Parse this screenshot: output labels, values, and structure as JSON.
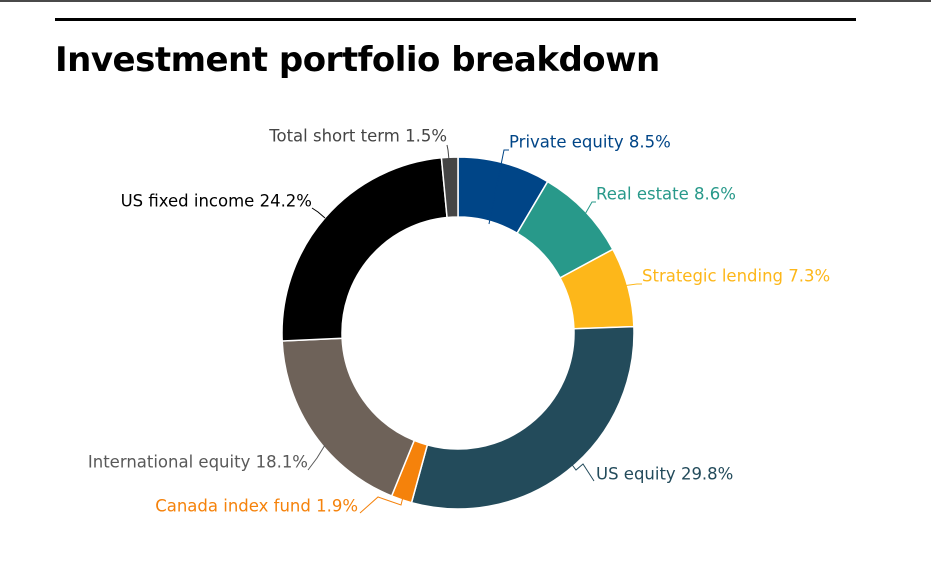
{
  "chart_data": {
    "type": "pie",
    "title": "Investment portfolio breakdown",
    "donut": true,
    "start_angle_deg": 0,
    "direction": "clockwise",
    "slices": [
      {
        "label": "Private equity 8.5%",
        "value": 8.5,
        "color": "#004587"
      },
      {
        "label": "Real estate 8.6%",
        "value": 8.6,
        "color": "#28998a"
      },
      {
        "label": "Strategic lending 7.3%",
        "value": 7.3,
        "color": "#fdb71a"
      },
      {
        "label": "US equity 29.8%",
        "value": 29.8,
        "color": "#234b5b"
      },
      {
        "label": "Canada index fund 1.9%",
        "value": 1.9,
        "color": "#f5820b"
      },
      {
        "label": "International equity  18.1%",
        "value": 18.1,
        "color": "#6e6259"
      },
      {
        "label": "US fixed income 24.2%",
        "value": 24.2,
        "color": "#000000"
      },
      {
        "label": "Total short term 1.5%",
        "value": 1.5,
        "color": "#454545"
      }
    ],
    "label_colors": [
      "#004587",
      "#28998a",
      "#fdb71a",
      "#234b5b",
      "#f5820b",
      "#595959",
      "#000000",
      "#454545"
    ]
  }
}
